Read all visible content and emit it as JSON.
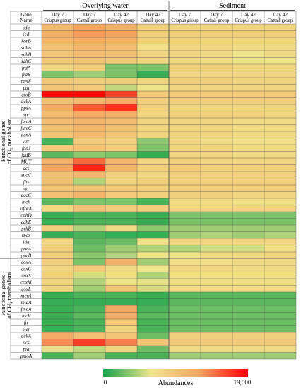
{
  "chart_data": {
    "type": "heatmap",
    "groups": [
      "Overlying water",
      "Sediment"
    ],
    "header_label": "Gene\nName",
    "columns": [
      {
        "group": "Overlying water",
        "day": "Day 7",
        "treatment": "Crispus group"
      },
      {
        "group": "Overlying water",
        "day": "Day 7",
        "treatment": "Cattail group"
      },
      {
        "group": "Overlying water",
        "day": "Day 42",
        "treatment": "Crispus group"
      },
      {
        "group": "Overlying water",
        "day": "Day 42",
        "treatment": "Cattail group"
      },
      {
        "group": "Sediment",
        "day": "Day 7",
        "treatment": "Crispus group"
      },
      {
        "group": "Sediment",
        "day": "Day 7",
        "treatment": "Cattail group"
      },
      {
        "group": "Sediment",
        "day": "Day 42",
        "treatment": "Crispus group"
      },
      {
        "group": "Sediment",
        "day": "Day 42",
        "treatment": "Cattail group"
      }
    ],
    "sections": [
      {
        "label_line1": "Functional genes",
        "label_line2": "of CO₂ metabolism",
        "rows": [
          0,
          34
        ]
      },
      {
        "label_line1": "Functional genes",
        "label_line2": "of CH₄ metabolism",
        "rows": [
          35,
          45
        ]
      }
    ],
    "genes": [
      "sdh",
      "icd",
      "korB",
      "sdhA",
      "sdhB",
      "sdhC",
      "frdA",
      "frdB",
      "metF",
      "pta",
      "atoB",
      "ackA",
      "ppsA",
      "ppc",
      "fumA",
      "fumC",
      "acnA",
      "crt",
      "fadJ",
      "fadB",
      "MUT",
      "acs",
      "sucC",
      "fhs",
      "pyc",
      "accC",
      "meh",
      "oforA",
      "cdhD",
      "cdhE",
      "prkB",
      "rbcS",
      "ldh",
      "porA",
      "porB",
      "coxA",
      "coxC",
      "coxS",
      "coxM",
      "coxL",
      "mcrA",
      "mtaA",
      "fmdA",
      "mch",
      "ftr",
      "mer",
      "ackA",
      "acs",
      "pta",
      "pmoA"
    ],
    "values": [
      [
        10500,
        12500,
        11500,
        8500,
        8000,
        8000,
        8000,
        8000
      ],
      [
        11500,
        13000,
        12500,
        8500,
        8500,
        8500,
        8500,
        8500
      ],
      [
        11000,
        12000,
        11500,
        8500,
        8500,
        8000,
        8000,
        8000
      ],
      [
        10000,
        11000,
        10500,
        7000,
        8000,
        8000,
        7500,
        7500
      ],
      [
        9500,
        10500,
        10000,
        8000,
        8000,
        7500,
        6500,
        7500
      ],
      [
        9000,
        9500,
        9000,
        8000,
        7500,
        7000,
        6500,
        6500
      ],
      [
        8000,
        8500,
        3000,
        3000,
        8500,
        8500,
        8000,
        8000
      ],
      [
        3000,
        4000,
        3000,
        1000,
        8000,
        8000,
        8000,
        8000
      ],
      [
        9000,
        8500,
        8500,
        8000,
        8500,
        8500,
        8000,
        8000
      ],
      [
        9500,
        9000,
        5000,
        6500,
        8000,
        8000,
        8000,
        8000
      ],
      [
        18500,
        18500,
        16500,
        9000,
        9000,
        9000,
        9000,
        9000
      ],
      [
        10000,
        10500,
        12000,
        8500,
        8500,
        8500,
        8500,
        8500
      ],
      [
        12000,
        15500,
        17000,
        8500,
        8000,
        8000,
        8000,
        8000
      ],
      [
        10500,
        12000,
        11500,
        8000,
        8500,
        8500,
        8500,
        8000
      ],
      [
        10500,
        11000,
        10500,
        8000,
        8000,
        8000,
        7500,
        7500
      ],
      [
        10000,
        11000,
        10000,
        8000,
        8000,
        8000,
        7500,
        7500
      ],
      [
        9500,
        10500,
        9500,
        8000,
        8000,
        8000,
        7500,
        7500
      ],
      [
        1500,
        9000,
        8500,
        3500,
        8000,
        7500,
        7000,
        7000
      ],
      [
        9000,
        9500,
        8500,
        3000,
        8000,
        8000,
        7500,
        7500
      ],
      [
        2000,
        3500,
        3000,
        1000,
        8000,
        8000,
        7500,
        7500
      ],
      [
        11500,
        15000,
        11000,
        8000,
        8500,
        8000,
        8000,
        8000
      ],
      [
        12500,
        17500,
        11000,
        8500,
        9000,
        8500,
        8500,
        8500
      ],
      [
        10000,
        11000,
        8500,
        8000,
        8500,
        8500,
        8500,
        8500
      ],
      [
        10000,
        4500,
        8000,
        8500,
        8500,
        8500,
        8500,
        8500
      ],
      [
        9500,
        9500,
        9000,
        8500,
        8500,
        8500,
        8500,
        8500
      ],
      [
        10000,
        11000,
        9000,
        8500,
        8500,
        8500,
        8000,
        8000
      ],
      [
        2000,
        3000,
        3000,
        1500,
        7500,
        7500,
        7000,
        7000
      ],
      [
        7500,
        9500,
        8500,
        8500,
        8000,
        8000,
        8000,
        8000
      ],
      [
        1000,
        1500,
        1500,
        1000,
        3000,
        3000,
        3000,
        3000
      ],
      [
        1000,
        1500,
        1500,
        1000,
        3000,
        3000,
        3000,
        3000
      ],
      [
        8500,
        4500,
        7500,
        3500,
        4000,
        4000,
        4000,
        4000
      ],
      [
        1000,
        1500,
        1000,
        1000,
        4000,
        4500,
        4000,
        4500
      ],
      [
        8000,
        2000,
        2500,
        7000,
        8000,
        8000,
        8000,
        8000
      ],
      [
        8500,
        2500,
        4000,
        4500,
        4500,
        5500,
        5500,
        7000
      ],
      [
        8500,
        3500,
        4500,
        6500,
        6500,
        7500,
        7500,
        8000
      ],
      [
        8500,
        3000,
        11500,
        4000,
        7000,
        7000,
        7500,
        7500
      ],
      [
        8000,
        9000,
        7500,
        6500,
        8000,
        8000,
        7500,
        7500
      ],
      [
        8500,
        5500,
        7000,
        4500,
        7000,
        7000,
        7000,
        7000
      ],
      [
        8000,
        4500,
        6500,
        6000,
        7000,
        7000,
        7000,
        7000
      ],
      [
        8000,
        4000,
        9500,
        5500,
        7000,
        7000,
        7000,
        7000
      ],
      [
        1000,
        1500,
        1500,
        1000,
        2000,
        2000,
        2000,
        2000
      ],
      [
        1000,
        1000,
        1000,
        1000,
        2000,
        2000,
        2000,
        2000
      ],
      [
        1000,
        1500,
        12500,
        1500,
        2500,
        2500,
        2500,
        2500
      ],
      [
        1000,
        2000,
        12000,
        2000,
        2500,
        2500,
        2500,
        2500
      ],
      [
        1000,
        1500,
        9000,
        1500,
        2500,
        2500,
        2500,
        2500
      ],
      [
        1000,
        1500,
        8000,
        1500,
        2500,
        2500,
        2500,
        2500
      ],
      [
        12000,
        10000,
        9500,
        2500,
        8500,
        8500,
        8500,
        8500
      ],
      [
        13500,
        16500,
        14000,
        9500,
        9000,
        9000,
        9000,
        9000
      ],
      [
        6000,
        5000,
        8000,
        2500,
        7500,
        7500,
        7500,
        7500
      ],
      [
        1500,
        4000,
        1500,
        1500,
        4000,
        4000,
        4000,
        4000
      ]
    ],
    "colorbar": {
      "min": 0,
      "max": 19000,
      "min_label": "0",
      "max_label": "19,000",
      "label": "Abundances",
      "colors": [
        "#16a34a",
        "#f0e68c",
        "#f4a460",
        "#ff0000"
      ]
    }
  }
}
